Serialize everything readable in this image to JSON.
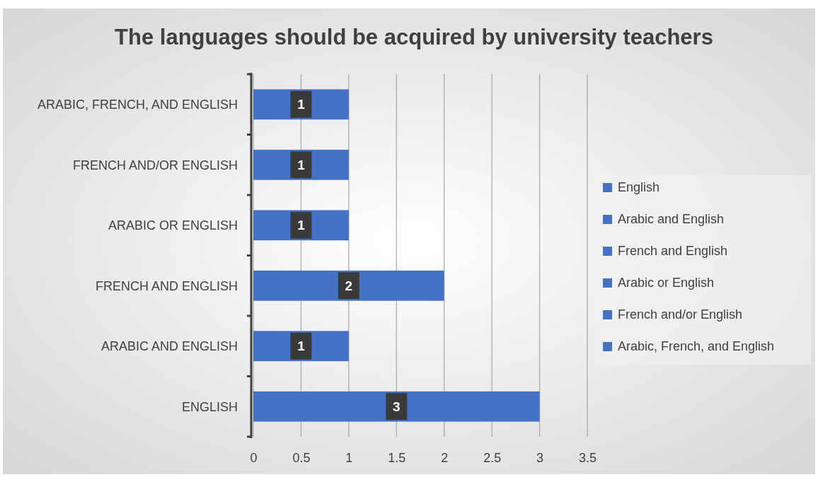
{
  "chart_data": {
    "type": "bar",
    "title": "The languages should be acquired by university teachers",
    "orientation": "horizontal",
    "categories": [
      "ARABIC, FRENCH, AND ENGLISH",
      "FRENCH AND/OR ENGLISH",
      "ARABIC OR ENGLISH",
      "FRENCH AND ENGLISH",
      "ARABIC AND ENGLISH",
      "ENGLISH"
    ],
    "series": [
      {
        "name": "English",
        "color": "#4472c4",
        "values": [
          null,
          null,
          null,
          null,
          null,
          3
        ]
      },
      {
        "name": "Arabic and English",
        "color": "#4472c4",
        "values": [
          null,
          null,
          null,
          null,
          1,
          null
        ]
      },
      {
        "name": "French and English",
        "color": "#4472c4",
        "values": [
          null,
          null,
          null,
          2,
          null,
          null
        ]
      },
      {
        "name": "Arabic or English",
        "color": "#4472c4",
        "values": [
          null,
          null,
          1,
          null,
          null,
          null
        ]
      },
      {
        "name": "French and/or English",
        "color": "#4472c4",
        "values": [
          null,
          1,
          null,
          null,
          null,
          null
        ]
      },
      {
        "name": "Arabic, French, and English",
        "color": "#4472c4",
        "values": [
          1,
          null,
          null,
          null,
          null,
          null
        ]
      }
    ],
    "xlim": [
      0,
      3.5
    ],
    "xticks": [
      0,
      0.5,
      1,
      1.5,
      2,
      2.5,
      3,
      3.5
    ],
    "grid": "x",
    "legend": "right",
    "data_labels": true
  }
}
